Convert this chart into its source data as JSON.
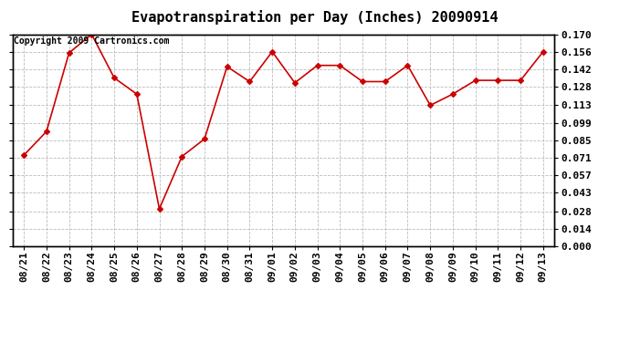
{
  "title": "Evapotranspiration per Day (Inches) 20090914",
  "copyright_text": "Copyright 2009 Cartronics.com",
  "dates": [
    "08/21",
    "08/22",
    "08/23",
    "08/24",
    "08/25",
    "08/26",
    "08/27",
    "08/28",
    "08/29",
    "08/30",
    "08/31",
    "09/01",
    "09/02",
    "09/03",
    "09/04",
    "09/05",
    "09/06",
    "09/07",
    "09/08",
    "09/09",
    "09/10",
    "09/11",
    "09/12",
    "09/13"
  ],
  "values": [
    0.073,
    0.092,
    0.155,
    0.17,
    0.135,
    0.122,
    0.03,
    0.072,
    0.086,
    0.144,
    0.132,
    0.156,
    0.131,
    0.145,
    0.145,
    0.132,
    0.132,
    0.145,
    0.113,
    0.122,
    0.133,
    0.133,
    0.133,
    0.156
  ],
  "line_color": "#cc0000",
  "marker": "D",
  "marker_size": 3,
  "background_color": "#ffffff",
  "plot_bg_color": "#ffffff",
  "grid_color": "#bbbbbb",
  "ylim": [
    0.0,
    0.17
  ],
  "yticks": [
    0.0,
    0.014,
    0.028,
    0.043,
    0.057,
    0.071,
    0.085,
    0.099,
    0.113,
    0.128,
    0.142,
    0.156,
    0.17
  ],
  "title_fontsize": 11,
  "tick_fontsize": 8,
  "copyright_fontsize": 7
}
